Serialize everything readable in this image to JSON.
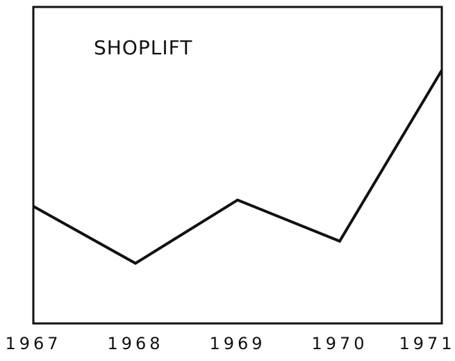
{
  "chart_data": {
    "type": "line",
    "title": "SHOPLIFT",
    "x": [
      1967,
      1968,
      1969,
      1970,
      1971
    ],
    "values": [
      37,
      19,
      39,
      26,
      80
    ],
    "color": "#111111",
    "xlim": [
      1967,
      1971
    ],
    "ylim": [
      0,
      100
    ]
  }
}
